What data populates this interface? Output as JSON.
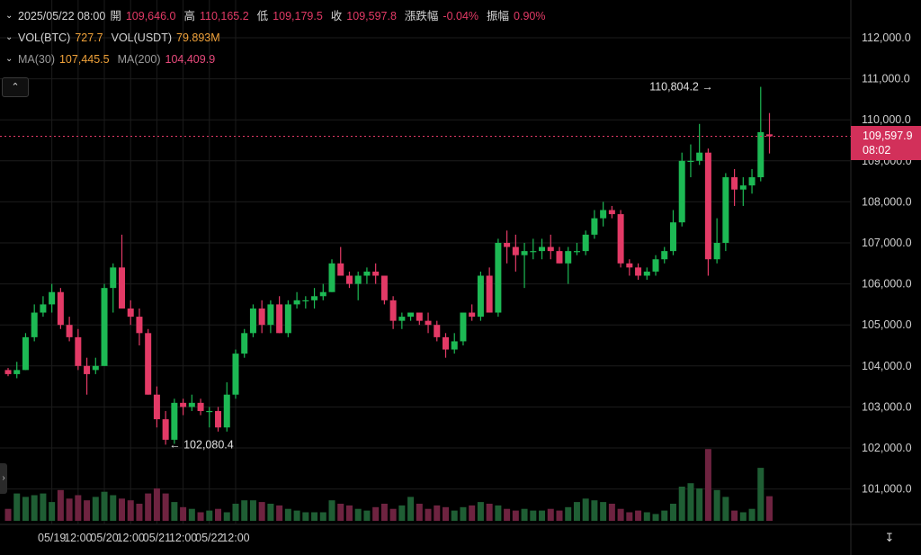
{
  "legend": {
    "ohlc": {
      "datetime": "2025/05/22 08:00",
      "open_label": "開",
      "open": "109,646.0",
      "high_label": "高",
      "high": "110,165.2",
      "low_label": "低",
      "low": "109,179.5",
      "close_label": "收",
      "close": "109,597.8",
      "change_label": "漲跌幅",
      "change": "-0.04%",
      "amplitude_label": "振幅",
      "amplitude": "0.90%"
    },
    "volume": {
      "vol_btc_label": "VOL(BTC)",
      "vol_btc": "727.7",
      "vol_usdt_label": "VOL(USDT)",
      "vol_usdt": "79.893M"
    },
    "ma": {
      "ma30_label": "MA(30)",
      "ma30": "107,445.5",
      "ma200_label": "MA(200)",
      "ma200": "104,409.9"
    }
  },
  "controls": {
    "collapse_icon": "chevron-up-icon",
    "side_handle_icon": "chevron-right-icon",
    "axis_reset_icon": "fit-axis-icon"
  },
  "current_price": {
    "price": "109,597.9",
    "countdown": "08:02"
  },
  "colors": {
    "background": "#000000",
    "up": "#1db954",
    "down": "#e33a66",
    "vol_up": "#1f5e34",
    "vol_down": "#6e2340",
    "grid": "#1c1c1c",
    "axis_text": "#cfcfcf",
    "price_tag": "#d2305a"
  },
  "chart_data": {
    "type": "candlestick",
    "timeframe_note": "4H candles",
    "x_tick_labels": [
      "05/19",
      "12:00",
      "05/20",
      "12:00",
      "05/21",
      "12:00",
      "05/22",
      "12:00"
    ],
    "y_tick_labels": [
      "101,000.0",
      "102,000.0",
      "103,000.0",
      "104,000.0",
      "105,000.0",
      "106,000.0",
      "107,000.0",
      "108,000.0",
      "109,000.0",
      "110,000.0",
      "111,000.0",
      "112,000.0"
    ],
    "y_tick_values": [
      101000,
      102000,
      103000,
      104000,
      105000,
      106000,
      107000,
      108000,
      109000,
      110000,
      111000,
      112000
    ],
    "ylim": [
      100200,
      112500
    ],
    "annotations": [
      {
        "text": "110,804.2",
        "price": 110804.2,
        "candle": 82,
        "side": "left"
      },
      {
        "text": "102,080.4",
        "price": 102080.4,
        "candle": 18,
        "side": "right"
      }
    ],
    "current_price_line": 109597.9,
    "candles": [
      {
        "o": 103900,
        "h": 103950,
        "l": 103750,
        "c": 103800
      },
      {
        "o": 103800,
        "h": 104100,
        "l": 103700,
        "c": 103900
      },
      {
        "o": 103900,
        "h": 104800,
        "l": 103900,
        "c": 104700
      },
      {
        "o": 104700,
        "h": 105500,
        "l": 104600,
        "c": 105300
      },
      {
        "o": 105300,
        "h": 105700,
        "l": 105200,
        "c": 105500
      },
      {
        "o": 105500,
        "h": 106000,
        "l": 105300,
        "c": 105800
      },
      {
        "o": 105800,
        "h": 105900,
        "l": 104900,
        "c": 105000
      },
      {
        "o": 105000,
        "h": 105200,
        "l": 104600,
        "c": 104700
      },
      {
        "o": 104700,
        "h": 104900,
        "l": 103900,
        "c": 104000
      },
      {
        "o": 104000,
        "h": 104200,
        "l": 103300,
        "c": 103800
      },
      {
        "o": 103900,
        "h": 104200,
        "l": 103800,
        "c": 104000
      },
      {
        "o": 104000,
        "h": 106000,
        "l": 104000,
        "c": 105900
      },
      {
        "o": 105900,
        "h": 106500,
        "l": 105300,
        "c": 106400
      },
      {
        "o": 106400,
        "h": 107200,
        "l": 105400,
        "c": 105400
      },
      {
        "o": 105400,
        "h": 105600,
        "l": 105000,
        "c": 105200
      },
      {
        "o": 105200,
        "h": 105400,
        "l": 104500,
        "c": 104800
      },
      {
        "o": 104800,
        "h": 104900,
        "l": 103300,
        "c": 103300
      },
      {
        "o": 103300,
        "h": 103500,
        "l": 102500,
        "c": 102700
      },
      {
        "o": 102700,
        "h": 102900,
        "l": 102080.4,
        "c": 102200
      },
      {
        "o": 102200,
        "h": 103200,
        "l": 102100,
        "c": 103100
      },
      {
        "o": 103100,
        "h": 103200,
        "l": 102800,
        "c": 103000
      },
      {
        "o": 103000,
        "h": 103300,
        "l": 102900,
        "c": 103100
      },
      {
        "o": 103100,
        "h": 103200,
        "l": 102800,
        "c": 102900
      },
      {
        "o": 102900,
        "h": 103000,
        "l": 102500,
        "c": 102900
      },
      {
        "o": 102900,
        "h": 103000,
        "l": 102400,
        "c": 102500
      },
      {
        "o": 102500,
        "h": 103600,
        "l": 102400,
        "c": 103300
      },
      {
        "o": 103300,
        "h": 104400,
        "l": 103200,
        "c": 104300
      },
      {
        "o": 104300,
        "h": 104900,
        "l": 104200,
        "c": 104800
      },
      {
        "o": 104800,
        "h": 105500,
        "l": 104700,
        "c": 105400
      },
      {
        "o": 105400,
        "h": 105600,
        "l": 104800,
        "c": 105000
      },
      {
        "o": 105000,
        "h": 105600,
        "l": 104800,
        "c": 105500
      },
      {
        "o": 105500,
        "h": 105700,
        "l": 104800,
        "c": 104800
      },
      {
        "o": 104800,
        "h": 105600,
        "l": 104700,
        "c": 105500
      },
      {
        "o": 105500,
        "h": 105800,
        "l": 105400,
        "c": 105600
      },
      {
        "o": 105600,
        "h": 105700,
        "l": 105400,
        "c": 105600
      },
      {
        "o": 105600,
        "h": 105900,
        "l": 105400,
        "c": 105700
      },
      {
        "o": 105700,
        "h": 106000,
        "l": 105600,
        "c": 105800
      },
      {
        "o": 105800,
        "h": 106600,
        "l": 105800,
        "c": 106500
      },
      {
        "o": 106500,
        "h": 106900,
        "l": 106200,
        "c": 106200
      },
      {
        "o": 106200,
        "h": 106300,
        "l": 105900,
        "c": 106000
      },
      {
        "o": 106000,
        "h": 106300,
        "l": 105600,
        "c": 106200
      },
      {
        "o": 106200,
        "h": 106400,
        "l": 106000,
        "c": 106300
      },
      {
        "o": 106300,
        "h": 106500,
        "l": 106000,
        "c": 106200
      },
      {
        "o": 106200,
        "h": 106200,
        "l": 105500,
        "c": 105600
      },
      {
        "o": 105600,
        "h": 105700,
        "l": 104900,
        "c": 105100
      },
      {
        "o": 105100,
        "h": 105300,
        "l": 104900,
        "c": 105200
      },
      {
        "o": 105200,
        "h": 105300,
        "l": 105100,
        "c": 105300
      },
      {
        "o": 105300,
        "h": 105300,
        "l": 105000,
        "c": 105100
      },
      {
        "o": 105100,
        "h": 105300,
        "l": 104800,
        "c": 105000
      },
      {
        "o": 105000,
        "h": 105100,
        "l": 104600,
        "c": 104700
      },
      {
        "o": 104700,
        "h": 104800,
        "l": 104200,
        "c": 104400
      },
      {
        "o": 104400,
        "h": 104800,
        "l": 104300,
        "c": 104600
      },
      {
        "o": 104600,
        "h": 105300,
        "l": 104500,
        "c": 105300
      },
      {
        "o": 105300,
        "h": 105500,
        "l": 105100,
        "c": 105200
      },
      {
        "o": 105200,
        "h": 106300,
        "l": 105100,
        "c": 106200
      },
      {
        "o": 106200,
        "h": 106400,
        "l": 105300,
        "c": 105300
      },
      {
        "o": 105300,
        "h": 107100,
        "l": 105200,
        "c": 107000
      },
      {
        "o": 107000,
        "h": 107300,
        "l": 106500,
        "c": 106900
      },
      {
        "o": 106900,
        "h": 107200,
        "l": 106300,
        "c": 106700
      },
      {
        "o": 106700,
        "h": 107000,
        "l": 105900,
        "c": 106800
      },
      {
        "o": 106800,
        "h": 107100,
        "l": 106600,
        "c": 106800
      },
      {
        "o": 106800,
        "h": 107100,
        "l": 106600,
        "c": 106900
      },
      {
        "o": 106900,
        "h": 107200,
        "l": 106600,
        "c": 106800
      },
      {
        "o": 106800,
        "h": 106900,
        "l": 106500,
        "c": 106500
      },
      {
        "o": 106500,
        "h": 106900,
        "l": 106000,
        "c": 106800
      },
      {
        "o": 106800,
        "h": 107000,
        "l": 106700,
        "c": 106800
      },
      {
        "o": 106800,
        "h": 107300,
        "l": 106700,
        "c": 107200
      },
      {
        "o": 107200,
        "h": 107800,
        "l": 107100,
        "c": 107600
      },
      {
        "o": 107600,
        "h": 108000,
        "l": 107400,
        "c": 107800
      },
      {
        "o": 107800,
        "h": 107900,
        "l": 107600,
        "c": 107700
      },
      {
        "o": 107700,
        "h": 107800,
        "l": 106400,
        "c": 106500
      },
      {
        "o": 106500,
        "h": 106600,
        "l": 106200,
        "c": 106400
      },
      {
        "o": 106400,
        "h": 106500,
        "l": 106100,
        "c": 106200
      },
      {
        "o": 106200,
        "h": 106400,
        "l": 106100,
        "c": 106300
      },
      {
        "o": 106300,
        "h": 106700,
        "l": 106200,
        "c": 106600
      },
      {
        "o": 106600,
        "h": 106900,
        "l": 106500,
        "c": 106800
      },
      {
        "o": 106800,
        "h": 107800,
        "l": 106700,
        "c": 107500
      },
      {
        "o": 107500,
        "h": 109200,
        "l": 107400,
        "c": 109000
      },
      {
        "o": 109000,
        "h": 109400,
        "l": 108600,
        "c": 109000
      },
      {
        "o": 109000,
        "h": 109900,
        "l": 108900,
        "c": 109200
      },
      {
        "o": 109200,
        "h": 109300,
        "l": 106200,
        "c": 106600
      },
      {
        "o": 106600,
        "h": 107600,
        "l": 106500,
        "c": 107000
      },
      {
        "o": 107000,
        "h": 108700,
        "l": 106800,
        "c": 108600
      },
      {
        "o": 108600,
        "h": 108800,
        "l": 107900,
        "c": 108300
      },
      {
        "o": 108300,
        "h": 108600,
        "l": 107900,
        "c": 108400
      },
      {
        "o": 108400,
        "h": 108800,
        "l": 108200,
        "c": 108600
      },
      {
        "o": 108600,
        "h": 110804.2,
        "l": 108500,
        "c": 109700
      },
      {
        "o": 109646.0,
        "h": 110165.2,
        "l": 109179.5,
        "c": 109597.8
      }
    ],
    "volume_relative": [
      0.35,
      0.8,
      0.7,
      0.75,
      0.8,
      0.55,
      0.9,
      0.65,
      0.75,
      0.6,
      0.7,
      0.85,
      0.75,
      0.65,
      0.6,
      0.5,
      0.8,
      0.95,
      0.8,
      0.55,
      0.4,
      0.35,
      0.25,
      0.3,
      0.35,
      0.25,
      0.5,
      0.6,
      0.6,
      0.55,
      0.5,
      0.45,
      0.35,
      0.3,
      0.25,
      0.25,
      0.25,
      0.6,
      0.5,
      0.45,
      0.35,
      0.3,
      0.4,
      0.5,
      0.35,
      0.45,
      0.7,
      0.5,
      0.35,
      0.45,
      0.4,
      0.3,
      0.4,
      0.45,
      0.55,
      0.5,
      0.45,
      0.35,
      0.3,
      0.35,
      0.3,
      0.3,
      0.35,
      0.3,
      0.4,
      0.55,
      0.65,
      0.6,
      0.55,
      0.5,
      0.35,
      0.25,
      0.3,
      0.25,
      0.2,
      0.3,
      0.5,
      1.0,
      1.1,
      0.95,
      2.1,
      0.9,
      0.7,
      0.3,
      0.25,
      0.35,
      1.55,
      0.72
    ]
  }
}
